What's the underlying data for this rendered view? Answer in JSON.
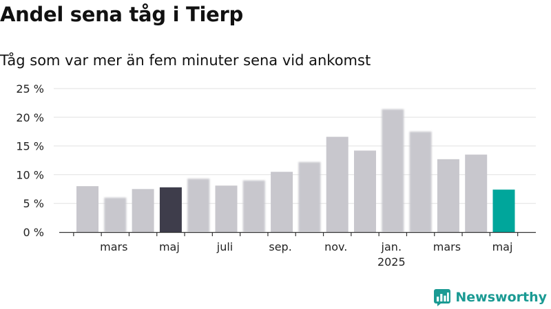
{
  "title": "Andel sena tåg i Tierp",
  "subtitle": "Tåg som var mer än fem minuter sena vid ankomst",
  "brand": {
    "name": "Newsworthy",
    "logo_icon": "newsworthy-logo-icon"
  },
  "chart_data": {
    "type": "bar",
    "categories": [
      "2024-02",
      "2024-03",
      "2024-04",
      "2024-05",
      "2024-06",
      "2024-07",
      "2024-08",
      "2024-09",
      "2024-10",
      "2024-11",
      "2024-12",
      "2025-01",
      "2025-02",
      "2025-03",
      "2025-04",
      "2025-05"
    ],
    "values": [
      8.0,
      6.0,
      7.5,
      7.8,
      9.3,
      8.1,
      9.0,
      10.5,
      12.2,
      16.6,
      14.2,
      21.4,
      17.5,
      12.7,
      13.5,
      7.4
    ],
    "blurred": [
      false,
      true,
      false,
      false,
      true,
      false,
      true,
      false,
      true,
      false,
      false,
      true,
      true,
      false,
      false,
      false
    ],
    "highlight": {
      "2024-05": "#3e3d4b",
      "2025-05": "#00a69b"
    },
    "default_color": "#c8c7cd",
    "ylim": [
      0,
      25
    ],
    "yticks": [
      0,
      5,
      10,
      15,
      20,
      25
    ],
    "ytick_labels": [
      "0 %",
      "5 %",
      "10 %",
      "15 %",
      "20 %",
      "25 %"
    ],
    "xtick_labels": [
      {
        "category": "2024-03",
        "label": "mars"
      },
      {
        "category": "2024-05",
        "label": "maj"
      },
      {
        "category": "2024-07",
        "label": "juli"
      },
      {
        "category": "2024-09",
        "label": "sep."
      },
      {
        "category": "2024-11",
        "label": "nov."
      },
      {
        "category": "2025-01",
        "label": "jan.",
        "sublabel": "2025"
      },
      {
        "category": "2025-03",
        "label": "mars"
      },
      {
        "category": "2025-05",
        "label": "maj"
      }
    ],
    "grid": true,
    "xlabel": "",
    "ylabel": ""
  }
}
